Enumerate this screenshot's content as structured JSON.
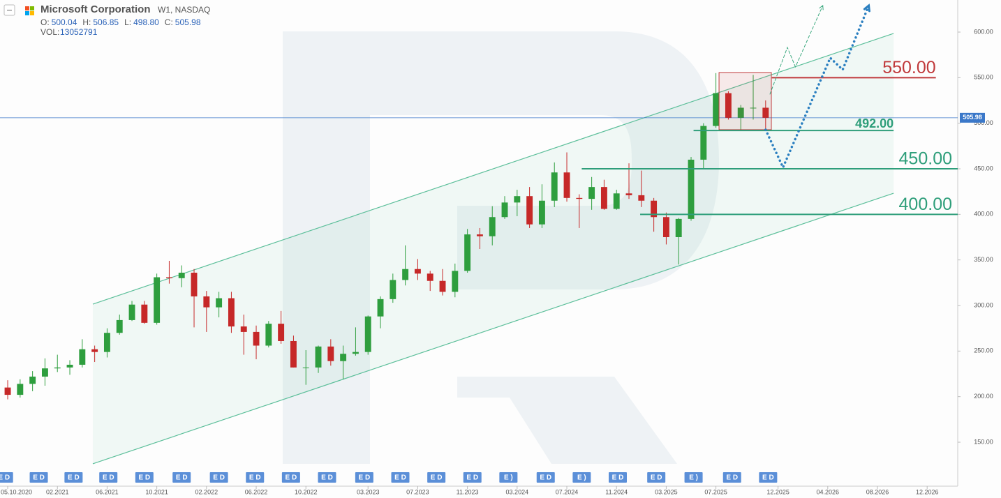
{
  "chart_data": {
    "type": "candlestick",
    "title": "Microsoft Corporation",
    "subtitle": "W1, NASDAQ",
    "quote": [
      {
        "name": "O:",
        "value": "500.04"
      },
      {
        "name": "H:",
        "value": "506.85"
      },
      {
        "name": "L:",
        "value": "498.80"
      },
      {
        "name": "C:",
        "value": "505.98"
      }
    ],
    "volume": {
      "name": "VOL:",
      "value": "13052791"
    },
    "x": [
      "10.2020",
      "11.2020",
      "12.2020",
      "01.2021",
      "02.2021",
      "03.2021",
      "04.2021",
      "05.2021",
      "06.2021",
      "07.2021",
      "08.2021",
      "09.2021",
      "10.2021",
      "11.2021",
      "12.2021",
      "01.2022",
      "02.2022",
      "03.2022",
      "04.2022",
      "05.2022",
      "06.2022",
      "07.2022",
      "08.2022",
      "09.2022",
      "10.2022",
      "11.2022",
      "12.2022",
      "01.2023",
      "02.2023",
      "03.2023",
      "04.2023",
      "05.2023",
      "06.2023",
      "07.2023",
      "08.2023",
      "09.2023",
      "10.2023",
      "11.2023",
      "12.2023",
      "01.2024",
      "02.2024",
      "03.2024",
      "04.2024",
      "05.2024",
      "06.2024",
      "07.2024",
      "08.2024",
      "09.2024",
      "10.2024",
      "11.2024",
      "12.2024",
      "01.2025",
      "02.2025",
      "03.2025",
      "04.2025",
      "05.2025",
      "06.2025",
      "07.2025",
      "08.2025",
      "09.2025",
      "10.2025",
      "11.2025"
    ],
    "open": [
      210,
      202,
      214,
      222,
      231,
      232,
      235,
      252,
      249,
      270,
      284,
      301,
      281,
      331,
      330,
      336,
      310,
      298,
      308,
      277,
      271,
      256,
      280,
      261,
      232,
      232,
      255,
      239,
      247,
      249,
      288,
      307,
      328,
      340,
      335,
      327,
      315,
      338,
      378,
      376,
      397,
      413,
      420,
      389,
      415,
      446,
      418,
      417,
      430,
      406,
      423,
      421,
      415,
      397,
      375,
      395,
      460,
      497,
      533,
      506,
      517,
      517
    ],
    "high": [
      218,
      219,
      228,
      242,
      246,
      240,
      263,
      256,
      275,
      290,
      305,
      305,
      335,
      349,
      344,
      340,
      316,
      315,
      315,
      290,
      278,
      283,
      294,
      267,
      251,
      256,
      263,
      256,
      276,
      289,
      310,
      335,
      366,
      351,
      338,
      340,
      346,
      384,
      385,
      409,
      420,
      427,
      430,
      433,
      457,
      468,
      422,
      441,
      438,
      427,
      456,
      448,
      418,
      402,
      396,
      463,
      500,
      555,
      535,
      520,
      553,
      525
    ],
    "low": [
      197,
      199,
      206,
      212,
      227,
      224,
      232,
      238,
      243,
      268,
      283,
      280,
      279,
      324,
      320,
      276,
      271,
      287,
      270,
      246,
      241,
      254,
      258,
      232,
      213,
      226,
      234,
      219,
      245,
      246,
      275,
      303,
      322,
      328,
      316,
      311,
      309,
      336,
      362,
      366,
      395,
      398,
      385,
      385,
      408,
      414,
      385,
      405,
      405,
      405,
      417,
      408,
      381,
      367,
      345,
      393,
      450,
      495,
      504,
      492,
      504,
      493
    ],
    "close": [
      202,
      214,
      222,
      231,
      232,
      235,
      252,
      249,
      270,
      284,
      301,
      281,
      331,
      330,
      336,
      310,
      298,
      308,
      277,
      271,
      256,
      280,
      261,
      232,
      232,
      255,
      239,
      247,
      249,
      288,
      307,
      328,
      340,
      335,
      327,
      315,
      338,
      378,
      376,
      397,
      413,
      420,
      389,
      415,
      446,
      418,
      417,
      430,
      406,
      423,
      421,
      415,
      397,
      375,
      395,
      460,
      497,
      533,
      506,
      517,
      517,
      505.98
    ],
    "up_color": "#2e9e3e",
    "down_color": "#c62828",
    "xlim": [
      -0.62,
      76.46
    ],
    "ylim": [
      101.8,
      635.2
    ],
    "yticks": [
      {
        "value": 150,
        "label": "150.00"
      },
      {
        "value": 200,
        "label": "200.00"
      },
      {
        "value": 250,
        "label": "250.00"
      },
      {
        "value": 300,
        "label": "300.00"
      },
      {
        "value": 350,
        "label": "350.00"
      },
      {
        "value": 400,
        "label": "400.00"
      },
      {
        "value": 450,
        "label": "450.00"
      },
      {
        "value": 500,
        "label": "500.00"
      },
      {
        "value": 550,
        "label": "550.00"
      },
      {
        "value": 600,
        "label": "600.00"
      }
    ],
    "xticks": [
      {
        "value": 0,
        "label": "05.10.2020"
      },
      {
        "value": 4,
        "label": "02.2021"
      },
      {
        "value": 8,
        "label": "06.2021"
      },
      {
        "value": 12,
        "label": "10.2021"
      },
      {
        "value": 16,
        "label": "02.2022"
      },
      {
        "value": 20,
        "label": "06.2022"
      },
      {
        "value": 24,
        "label": "10.2022"
      },
      {
        "value": 29,
        "label": "03.2023"
      },
      {
        "value": 33,
        "label": "07.2023"
      },
      {
        "value": 37,
        "label": "11.2023"
      },
      {
        "value": 41,
        "label": "03.2024"
      },
      {
        "value": 45,
        "label": "07.2024"
      },
      {
        "value": 49,
        "label": "11.2024"
      },
      {
        "value": 53,
        "label": "03.2025"
      },
      {
        "value": 57,
        "label": "07.2025"
      },
      {
        "value": 62,
        "label": "12.2025"
      },
      {
        "value": 66,
        "label": "04.2026"
      },
      {
        "value": 70,
        "label": "08.2026"
      },
      {
        "value": 74,
        "label": "12.2026"
      }
    ],
    "last_price": 505.98,
    "last_price_color": "#3b78c9",
    "channel": {
      "color": "#5cbf9a",
      "upper": {
        "x": [
          6.85,
          71.3
        ],
        "y": [
          301.5,
          598.5
        ]
      },
      "lower": {
        "x": [
          6.85,
          71.3
        ],
        "y": [
          126.3,
          423.2
        ]
      }
    },
    "levels": [
      {
        "value": 550,
        "label": "550.00",
        "color": "#c0393b",
        "from": 61.5,
        "to": 74.7
      },
      {
        "value": 492,
        "label": "492.00",
        "color": "#2e9e7a",
        "from": 55.2,
        "to": 71.3
      },
      {
        "value": 450,
        "label": "450.00",
        "color": "#2e9e7a",
        "from": 46.2,
        "to": 76.46
      },
      {
        "value": 400,
        "label": "400.00",
        "color": "#2e9e7a",
        "from": 50.9,
        "to": 76.46
      }
    ],
    "range_box": {
      "x": [
        57.25,
        61.46
      ],
      "y": [
        492.9,
        555.6
      ],
      "color": "#c0393b"
    },
    "forecasts": [
      {
        "color": "#2a7fc0",
        "x": [
          61,
          62.4,
          66.2,
          67.2,
          69.3
        ],
        "y": [
          492.9,
          451.5,
          571.7,
          558.7,
          629.1
        ]
      },
      {
        "color": "#3aa87e",
        "x": [
          61.35,
          62.75,
          63.4,
          65.6
        ],
        "y": [
          531.9,
          583.2,
          561.8,
          629.1
        ]
      }
    ],
    "events": [
      {
        "x": -0.3,
        "label": "E D"
      },
      {
        "x": 2.5,
        "label": "E D"
      },
      {
        "x": 5.3,
        "label": "E D"
      },
      {
        "x": 8.1,
        "label": "E D"
      },
      {
        "x": 11.0,
        "label": "E D"
      },
      {
        "x": 14.0,
        "label": "E D"
      },
      {
        "x": 17.0,
        "label": "E D"
      },
      {
        "x": 19.9,
        "label": "E D"
      },
      {
        "x": 22.8,
        "label": "E D"
      },
      {
        "x": 25.7,
        "label": "E D"
      },
      {
        "x": 28.7,
        "label": "E D"
      },
      {
        "x": 31.6,
        "label": "E D"
      },
      {
        "x": 34.5,
        "label": "E D"
      },
      {
        "x": 37.4,
        "label": "E D"
      },
      {
        "x": 40.3,
        "label": "E )"
      },
      {
        "x": 43.3,
        "label": "E D"
      },
      {
        "x": 46.2,
        "label": "E )"
      },
      {
        "x": 49.1,
        "label": "E D"
      },
      {
        "x": 52.2,
        "label": "E D"
      },
      {
        "x": 55.2,
        "label": "E )"
      },
      {
        "x": 58.3,
        "label": "E D"
      },
      {
        "x": 61.2,
        "label": "E D"
      }
    ]
  }
}
